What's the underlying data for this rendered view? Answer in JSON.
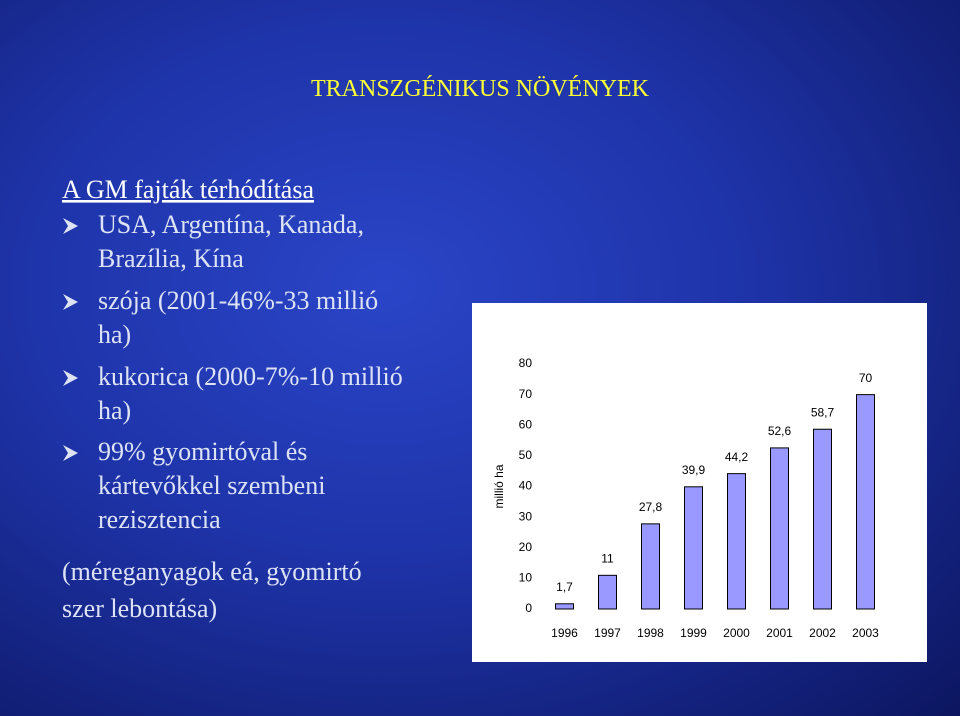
{
  "slide": {
    "title": "TRANSZGÉNIKUS NÖVÉNYEK",
    "heading": "A GM fajták térhódítása",
    "bullets": [
      {
        "lines": [
          "USA, Argentína, Kanada,",
          "Brazília, Kína"
        ]
      },
      {
        "lines": [
          "szója (2001-46%-33 millió",
          "ha)"
        ]
      },
      {
        "lines": [
          "kukorica (2000-7%-10 millió",
          "ha)"
        ]
      },
      {
        "lines": [
          "99% gyomirtóval és",
          "kártevőkkel szembeni",
          "rezisztencia"
        ]
      }
    ],
    "note": [
      "(méreganyagok eá, gyomirtó",
      "szer lebontása)"
    ]
  },
  "chart_data": {
    "type": "bar",
    "y_label": "millió ha",
    "categories": [
      "1996",
      "1997",
      "1998",
      "1999",
      "2000",
      "2001",
      "2002",
      "2003"
    ],
    "values": [
      1.7,
      11,
      27.8,
      39.9,
      44.2,
      52.6,
      58.7,
      70
    ],
    "value_labels": [
      "1,7",
      "11",
      "27,8",
      "39,9",
      "44,2",
      "52,6",
      "58,7",
      "70"
    ],
    "color": "#9999ff",
    "ylim": [
      0,
      80
    ],
    "yticks": [
      0,
      10,
      20,
      30,
      40,
      50,
      60,
      70,
      80
    ]
  }
}
